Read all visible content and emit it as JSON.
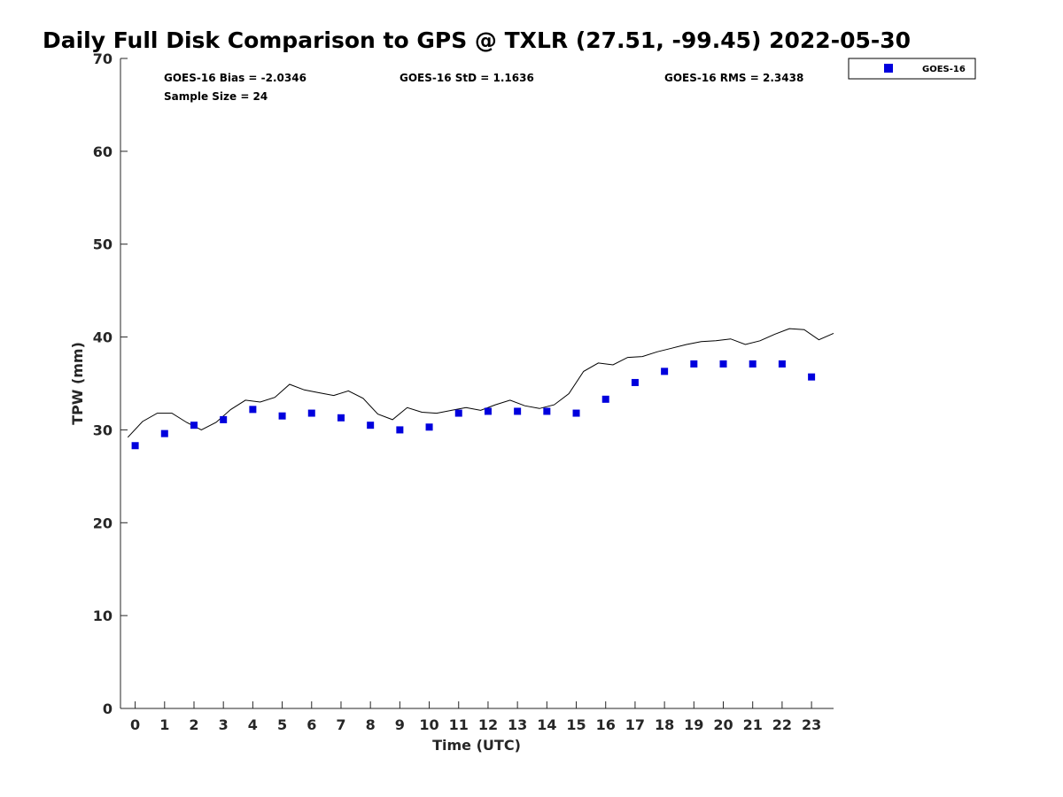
{
  "chart_data": {
    "type": "scatter",
    "title": "Daily Full Disk Comparison to GPS @ TXLR (27.51, -99.45) 2022-05-30",
    "xlabel": "Time (UTC)",
    "ylabel": "TPW (mm)",
    "xlim": [
      -0.5,
      23.75
    ],
    "ylim": [
      0,
      70
    ],
    "xticks": [
      "0",
      "1",
      "2",
      "3",
      "4",
      "5",
      "6",
      "7",
      "8",
      "9",
      "10",
      "11",
      "12",
      "13",
      "14",
      "15",
      "16",
      "17",
      "18",
      "19",
      "20",
      "21",
      "22",
      "23"
    ],
    "yticks": [
      "0",
      "10",
      "20",
      "30",
      "40",
      "50",
      "60",
      "70"
    ],
    "grid": false,
    "legend_position": "outside top-right",
    "stats": {
      "bias": "GOES-16 Bias = -2.0346",
      "std": "GOES-16 StD = 1.1636",
      "rms": "GOES-16 RMS = 2.3438",
      "sample": "Sample Size = 24"
    },
    "series": [
      {
        "name": "GOES-16",
        "marker": "square",
        "color": "#0000dd",
        "x": [
          0,
          1,
          2,
          3,
          4,
          5,
          6,
          7,
          8,
          9,
          10,
          11,
          12,
          13,
          14,
          15,
          16,
          17,
          18,
          19,
          20,
          21,
          22,
          23
        ],
        "y": [
          28.3,
          29.6,
          30.5,
          31.1,
          32.2,
          31.5,
          31.8,
          31.3,
          30.5,
          30.0,
          30.3,
          31.8,
          32.0,
          32.0,
          32.0,
          31.8,
          33.3,
          35.1,
          36.3,
          37.1,
          37.1,
          37.1,
          37.1,
          35.7
        ]
      },
      {
        "name": "",
        "marker": "line",
        "color": "#000000",
        "x": [
          -0.25,
          0.25,
          0.75,
          1.25,
          1.75,
          2.25,
          2.75,
          3.25,
          3.75,
          4.25,
          4.75,
          5.25,
          5.75,
          6.25,
          6.75,
          7.25,
          7.75,
          8.25,
          8.75,
          9.25,
          9.75,
          10.25,
          10.75,
          11.25,
          11.75,
          12.25,
          12.75,
          13.25,
          13.75,
          14.25,
          14.75,
          15.25,
          15.75,
          16.25,
          16.75,
          17.25,
          17.75,
          18.25,
          18.75,
          19.25,
          19.75,
          20.25,
          20.75,
          21.25,
          21.75,
          22.25,
          22.75,
          23.25,
          23.75
        ],
        "y": [
          29.2,
          30.9,
          31.8,
          31.8,
          30.8,
          30.0,
          30.8,
          32.2,
          33.2,
          33.0,
          33.5,
          34.9,
          34.3,
          34.0,
          33.7,
          34.2,
          33.4,
          31.7,
          31.1,
          32.4,
          31.9,
          31.8,
          32.1,
          32.4,
          32.1,
          32.7,
          33.2,
          32.6,
          32.3,
          32.7,
          33.9,
          36.3,
          37.2,
          37.0,
          37.8,
          37.9,
          38.4,
          38.8,
          39.2,
          39.5,
          39.6,
          39.8,
          39.2,
          39.6,
          40.3,
          40.9,
          40.8,
          39.7,
          40.4
        ]
      }
    ]
  }
}
